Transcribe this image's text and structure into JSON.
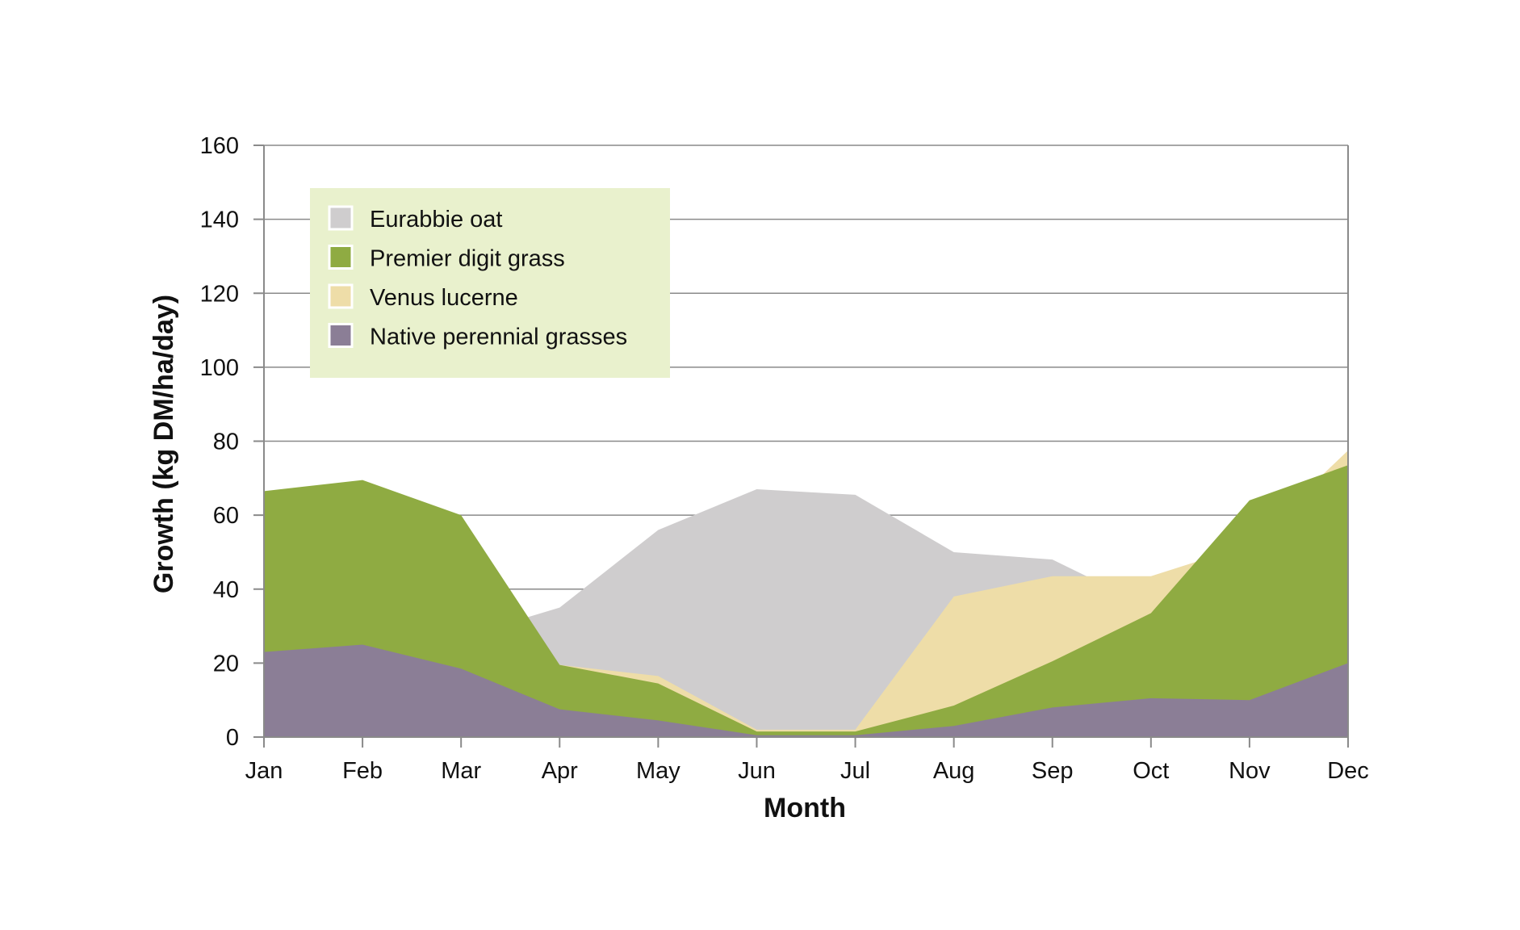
{
  "chart_data": {
    "type": "area",
    "xlabel": "Month",
    "ylabel": "Growth (kg DM/ha/day)",
    "categories": [
      "Jan",
      "Feb",
      "Mar",
      "Apr",
      "May",
      "Jun",
      "Jul",
      "Aug",
      "Sep",
      "Oct",
      "Nov",
      "Dec"
    ],
    "ylim": [
      0,
      160
    ],
    "yticks": [
      0,
      20,
      40,
      60,
      80,
      100,
      120,
      140,
      160
    ],
    "grid": true,
    "legend_position": "top-left",
    "series": [
      {
        "name": "Eurabbie oat",
        "color": "#cfcdce",
        "values": [
          null,
          null,
          27,
          35,
          56,
          67,
          65.5,
          50,
          48,
          35,
          null,
          null
        ]
      },
      {
        "name": "Venus lucerne",
        "color": "#eedda8",
        "values": [
          null,
          null,
          null,
          19.5,
          16.5,
          2,
          2,
          38,
          43.5,
          43.5,
          52,
          77.5
        ]
      },
      {
        "name": "Premier digit grass",
        "color": "#8fab42",
        "values": [
          66.5,
          69.5,
          60,
          19.5,
          14.5,
          1.5,
          1.5,
          8.5,
          20.5,
          33.5,
          64,
          73.5
        ]
      },
      {
        "name": "Native perennial grasses",
        "color": "#8b7e96",
        "values": [
          23,
          25,
          18.5,
          7.5,
          4.5,
          0.5,
          0.5,
          3,
          8,
          10.5,
          10,
          20
        ]
      }
    ],
    "legend_order": [
      "Eurabbie oat",
      "Premier digit grass",
      "Venus lucerne",
      "Native perennial grasses"
    ],
    "colors": {
      "legend_background": "#e9f1cd",
      "grid": "#8a8a8a",
      "axis": "#8a8a8a"
    }
  }
}
